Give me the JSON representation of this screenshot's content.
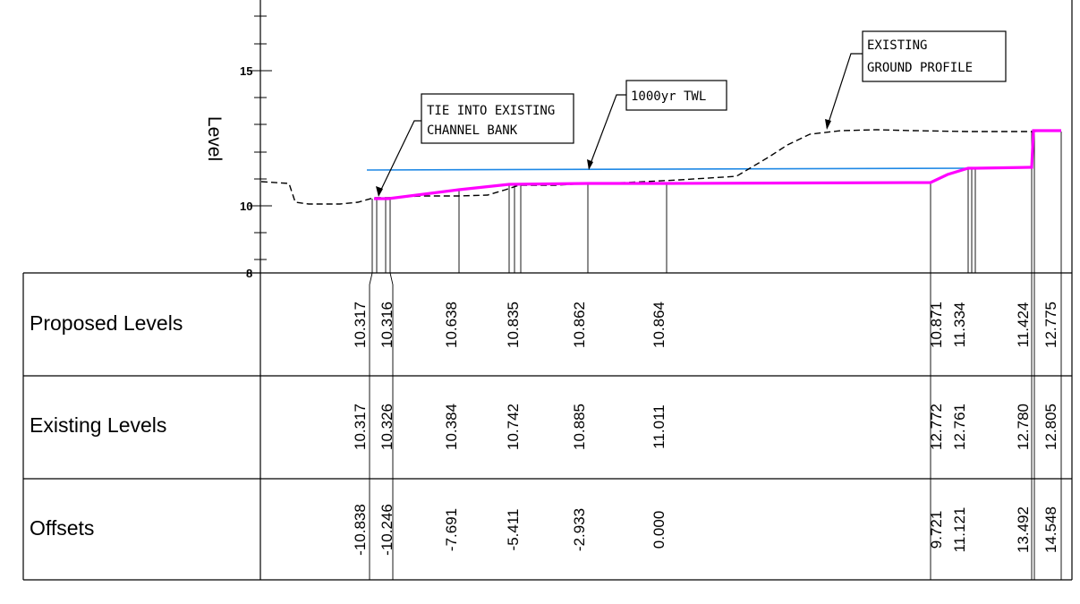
{
  "axis": {
    "title": "Level",
    "ticks": [
      {
        "value": 15,
        "label": "15"
      },
      {
        "value": 10,
        "label": "10"
      },
      {
        "value": 8,
        "label": "8"
      }
    ]
  },
  "rows": {
    "proposed": "Proposed Levels",
    "existing": "Existing Levels",
    "offsets": "Offsets"
  },
  "stations": [
    {
      "offset": "-10.838",
      "proposed": "10.317",
      "existing": "10.317"
    },
    {
      "offset": "-10.246",
      "proposed": "10.316",
      "existing": "10.326"
    },
    {
      "offset": "-7.691",
      "proposed": "10.638",
      "existing": "10.384"
    },
    {
      "offset": "-5.411",
      "proposed": "10.835",
      "existing": "10.742"
    },
    {
      "offset": "-2.933",
      "proposed": "10.862",
      "existing": "10.885"
    },
    {
      "offset": "0.000",
      "proposed": "10.864",
      "existing": "11.011"
    },
    {
      "offset": "9.721",
      "proposed": "10.871",
      "existing": "12.772"
    },
    {
      "offset": "11.121",
      "proposed": "11.334",
      "existing": "12.761"
    },
    {
      "offset": "13.492",
      "proposed": "11.424",
      "existing": "12.780"
    },
    {
      "offset": "14.548",
      "proposed": "12.775",
      "existing": "12.805"
    }
  ],
  "callouts": {
    "tie_in": [
      "TIE INTO EXISTING",
      "CHANNEL BANK"
    ],
    "twl": [
      "1000yr TWL"
    ],
    "ground": [
      "EXISTING",
      "GROUND PROFILE"
    ]
  },
  "colors": {
    "proposed_line": "#ff00ff",
    "twl_line": "#1e88e5",
    "existing_line": "#000000"
  }
}
